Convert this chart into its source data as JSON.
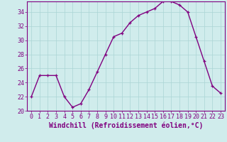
{
  "x": [
    0,
    1,
    2,
    3,
    4,
    5,
    6,
    7,
    8,
    9,
    10,
    11,
    12,
    13,
    14,
    15,
    16,
    17,
    18,
    19,
    20,
    21,
    22,
    23
  ],
  "y": [
    22,
    25,
    25,
    25,
    22,
    20.5,
    21,
    23,
    25.5,
    28,
    30.5,
    31,
    32.5,
    33.5,
    34,
    34.5,
    35.5,
    35.5,
    35,
    34,
    30.5,
    27,
    23.5,
    22.5
  ],
  "line_color": "#800080",
  "marker_color": "#800080",
  "bg_color": "#d0ecec",
  "grid_color": "#aad4d4",
  "xlabel": "Windchill (Refroidissement éolien,°C)",
  "xlim_min": -0.5,
  "xlim_max": 23.5,
  "ylim_min": 20,
  "ylim_max": 35.5,
  "yticks": [
    20,
    22,
    24,
    26,
    28,
    30,
    32,
    34
  ],
  "xticks": [
    0,
    1,
    2,
    3,
    4,
    5,
    6,
    7,
    8,
    9,
    10,
    11,
    12,
    13,
    14,
    15,
    16,
    17,
    18,
    19,
    20,
    21,
    22,
    23
  ],
  "xlabel_fontsize": 7.0,
  "tick_fontsize": 6.0,
  "line_width": 1.0,
  "marker_size": 2.5,
  "label_color": "#800080",
  "spine_color": "#800080"
}
